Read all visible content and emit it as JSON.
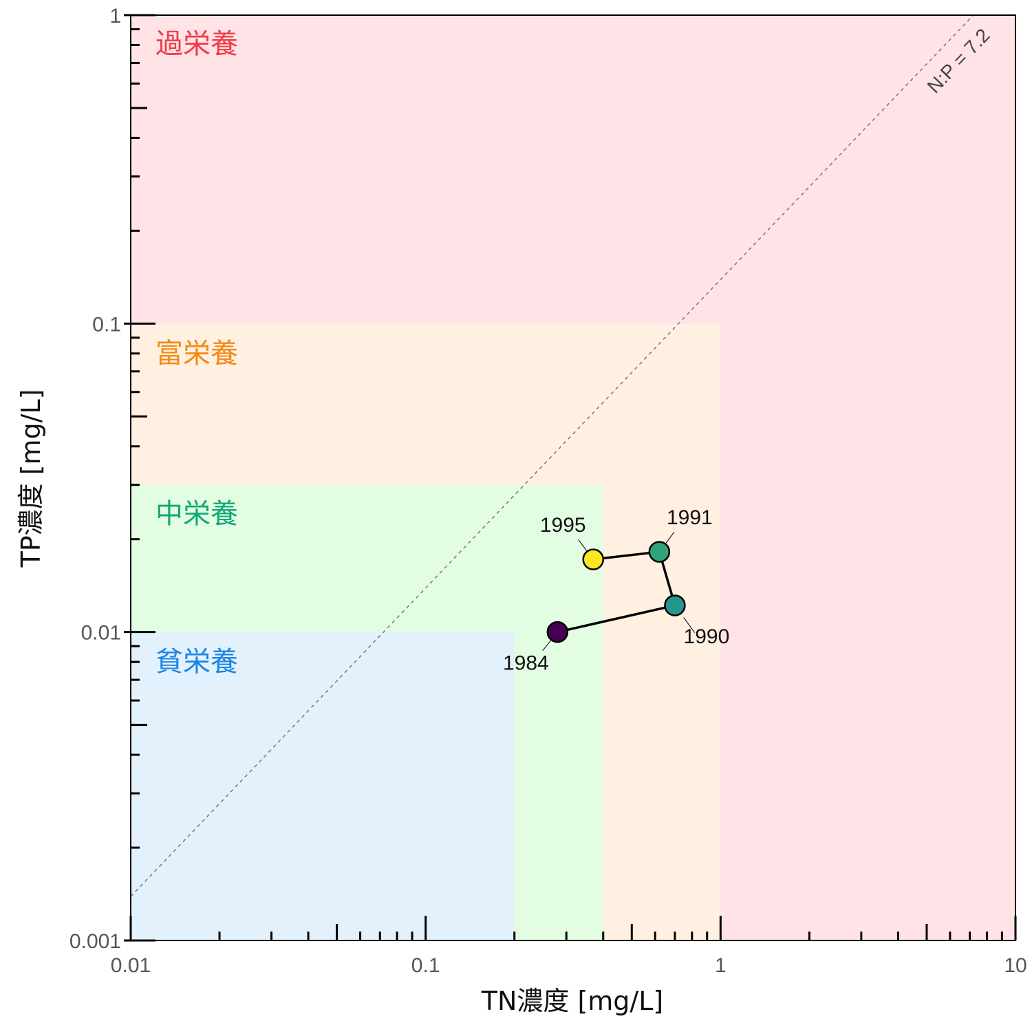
{
  "chart_data": {
    "type": "scatter",
    "xlabel": "TN濃度 [mg/L]",
    "ylabel": "TP濃度 [mg/L]",
    "xscale": "log",
    "yscale": "log",
    "xlim": [
      0.01,
      10
    ],
    "ylim": [
      0.001,
      1
    ],
    "x_major_ticks": [
      0.01,
      0.1,
      1,
      10
    ],
    "x_tick_labels": [
      "0.01",
      "0.1",
      "1",
      "10"
    ],
    "y_major_ticks": [
      0.001,
      0.01,
      0.1,
      1
    ],
    "y_tick_labels": [
      "0.001",
      "0.01",
      "0.1",
      "1"
    ],
    "grid": false,
    "zones": [
      {
        "label": "過栄養",
        "tn_max": 10,
        "tp_max": 1,
        "fill": "#ffe3e6",
        "text_color": "#f03c46"
      },
      {
        "label": "富栄養",
        "tn_max": 1,
        "tp_max": 0.1,
        "fill": "#fff0e2",
        "text_color": "#f28a14"
      },
      {
        "label": "中栄養",
        "tn_max": 0.4,
        "tp_max": 0.03,
        "fill": "#e3fde3",
        "text_color": "#13a877"
      },
      {
        "label": "貧栄養",
        "tn_max": 0.2,
        "tp_max": 0.01,
        "fill": "#e3f1fd",
        "text_color": "#1a86e6"
      }
    ],
    "ratio_line": {
      "label": "N:P = 7.2",
      "ratio": 7.2
    },
    "points": [
      {
        "year": "1984",
        "tn": 0.28,
        "tp": 0.01,
        "color": "#440154"
      },
      {
        "year": "1990",
        "tn": 0.7,
        "tp": 0.0122,
        "color": "#26968c"
      },
      {
        "year": "1991",
        "tn": 0.62,
        "tp": 0.0182,
        "color": "#2ea37a"
      },
      {
        "year": "1995",
        "tn": 0.37,
        "tp": 0.0172,
        "color": "#fde725"
      }
    ]
  }
}
